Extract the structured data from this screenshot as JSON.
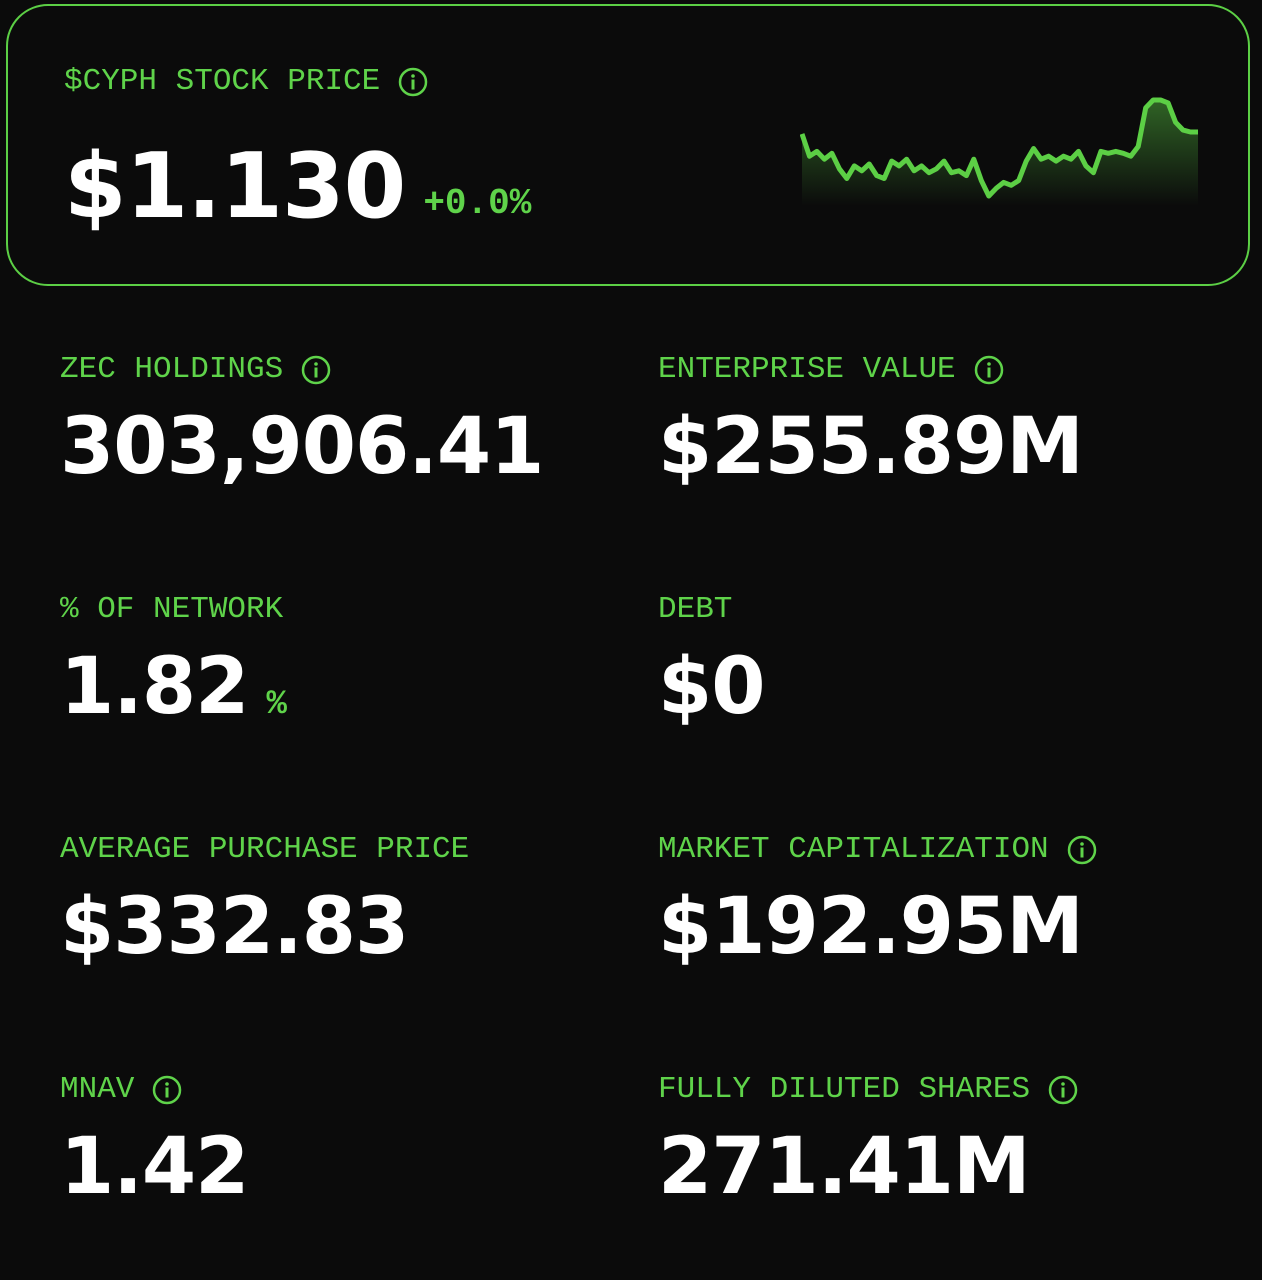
{
  "header": {
    "title": "$CYPH STOCK PRICE",
    "price": "$1.130",
    "change": "+0.0%",
    "sparkline": {
      "type": "line",
      "color": "#5ccf45",
      "values": [
        68,
        45,
        50,
        42,
        48,
        32,
        22,
        35,
        30,
        37,
        25,
        22,
        40,
        35,
        42,
        30,
        35,
        28,
        32,
        40,
        28,
        30,
        25,
        42,
        20,
        4,
        12,
        18,
        15,
        20,
        40,
        53,
        42,
        45,
        40,
        45,
        42,
        50,
        35,
        28,
        50,
        48,
        50,
        48,
        45,
        55,
        95,
        103,
        103,
        100,
        80,
        72,
        70,
        70
      ]
    }
  },
  "stats": [
    {
      "label": "ZEC HOLDINGS",
      "value": "303,906.41",
      "info": true
    },
    {
      "label": "ENTERPRISE VALUE",
      "value": "$255.89M",
      "info": true
    },
    {
      "label": "% OF NETWORK",
      "value": "1.82",
      "unit": "%",
      "info": false
    },
    {
      "label": "DEBT",
      "value": "$0",
      "info": false
    },
    {
      "label": "AVERAGE PURCHASE PRICE",
      "value": "$332.83",
      "info": false
    },
    {
      "label": "MARKET CAPITALIZATION",
      "value": "$192.95M",
      "info": true
    },
    {
      "label": "MNAV",
      "value": "1.42",
      "info": true
    },
    {
      "label": "FULLY DILUTED SHARES",
      "value": "271.41M",
      "info": true
    }
  ]
}
